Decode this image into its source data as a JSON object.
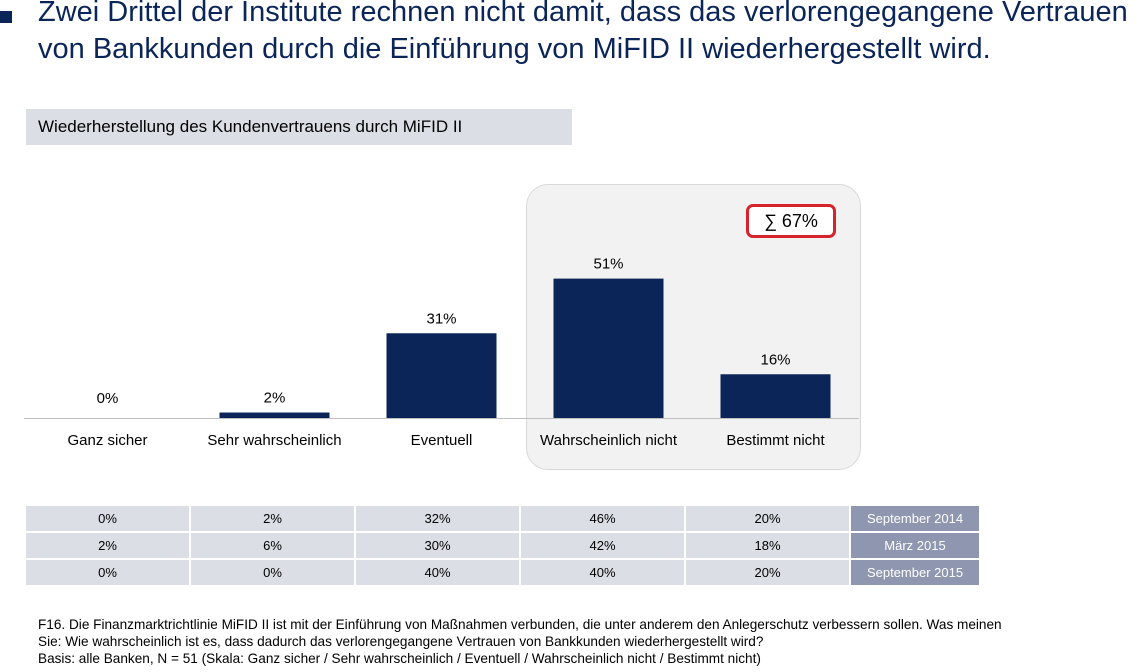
{
  "headline": "Zwei Drittel der Institute rechnen nicht damit, dass das verlorengegangene Vertrauen von Bankkunden durch die Einführung von MiFID II wiederhergestellt wird.",
  "subtitle": "Wiederherstellung des Kundenvertrauens durch MiFID II",
  "sum_badge": {
    "symbol": "∑",
    "value": "67%"
  },
  "chart_data": {
    "type": "bar",
    "categories": [
      "Ganz sicher",
      "Sehr wahrscheinlich",
      "Eventuell",
      "Wahrscheinlich nicht",
      "Bestimmt nicht"
    ],
    "values": [
      0,
      2,
      31,
      51,
      16
    ],
    "value_labels": [
      "0%",
      "2%",
      "31%",
      "51%",
      "16%"
    ],
    "title": "Wiederherstellung des Kundenvertrauens durch MiFID II",
    "xlabel": "",
    "ylabel": "",
    "ylim": [
      0,
      60
    ],
    "grid": false,
    "bar_color": "#0b2558",
    "highlighted_categories": [
      "Wahrscheinlich nicht",
      "Bestimmt nicht"
    ],
    "highlight_sum": "∑ 67%"
  },
  "comparison_table": {
    "rows": [
      {
        "period": "September 2014",
        "values": [
          "0%",
          "2%",
          "32%",
          "46%",
          "20%"
        ]
      },
      {
        "period": "März 2015",
        "values": [
          "2%",
          "6%",
          "30%",
          "42%",
          "18%"
        ]
      },
      {
        "period": "September 2015",
        "values": [
          "0%",
          "0%",
          "40%",
          "40%",
          "20%"
        ]
      }
    ]
  },
  "footnote": {
    "line1": "F16. Die Finanzmarktrichtlinie MiFID II ist mit der Einführung von Maßnahmen verbunden, die unter anderem den Anlegerschutz verbessern sollen. Was meinen",
    "line2": "Sie: Wie wahrscheinlich ist es, dass dadurch das verlorengegangene Vertrauen von Bankkunden wiederhergestellt wird?",
    "line3": "Basis: alle Banken, N = 51 (Skala: Ganz sicher / Sehr wahrscheinlich / Eventuell / Wahrscheinlich nicht / Bestimmt nicht)"
  },
  "colors": {
    "navy": "#0b2558",
    "highlight_bg": "#f2f2f2",
    "badge_border": "#d7242c",
    "table_cell": "#dcdee6",
    "table_period": "#8e97af"
  }
}
